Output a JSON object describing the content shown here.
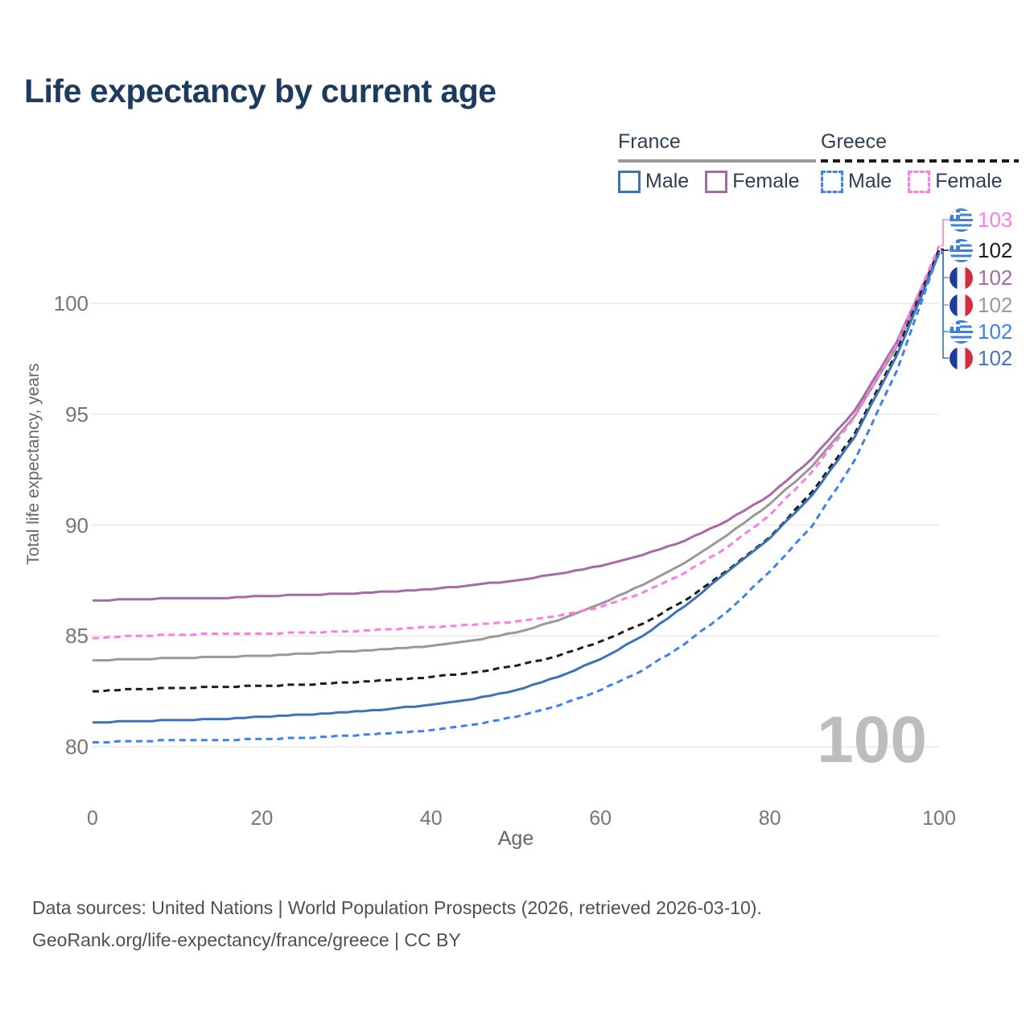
{
  "title": "Life expectancy by current age",
  "watermark": "100",
  "legend": {
    "groups": [
      {
        "country": "France",
        "style": "solid",
        "items": [
          {
            "label": "Male",
            "color": "#3e72b8"
          },
          {
            "label": "Female",
            "color": "#a66aa6"
          }
        ]
      },
      {
        "country": "Greece",
        "style": "dashed",
        "items": [
          {
            "label": "Male",
            "color": "#3c82f0"
          },
          {
            "label": "Female",
            "color": "#fc7ce3"
          }
        ]
      }
    ]
  },
  "axes": {
    "x": {
      "label": "Age",
      "ticks": [
        0,
        20,
        40,
        60,
        80,
        100
      ],
      "range": [
        0,
        100
      ]
    },
    "y": {
      "label": "Total life expectancy, years",
      "ticks": [
        80,
        85,
        90,
        95,
        100
      ],
      "range_shown": [
        80,
        100
      ]
    }
  },
  "chart_data": {
    "type": "line",
    "x": [
      0,
      5,
      10,
      15,
      20,
      25,
      30,
      35,
      40,
      45,
      50,
      55,
      60,
      65,
      70,
      75,
      80,
      85,
      90,
      95,
      100
    ],
    "xlabel": "Age",
    "ylabel": "Total life expectancy, years",
    "ylim": [
      78.5,
      103.5
    ],
    "grid": "horizontal",
    "legend_position": "top-right",
    "series": [
      {
        "name": "France",
        "country": "France",
        "sex": "Both sexes",
        "style": "solid",
        "color": "#999999",
        "row": 3,
        "flag": "france",
        "end_label": "102",
        "values": [
          83.9,
          83.95,
          84.0,
          84.05,
          84.1,
          84.2,
          84.3,
          84.4,
          84.55,
          84.8,
          85.15,
          85.7,
          86.45,
          87.3,
          88.3,
          89.55,
          90.95,
          92.65,
          94.9,
          98.05,
          102.35
        ]
      },
      {
        "name": "France Female",
        "country": "France",
        "sex": "Female",
        "style": "solid",
        "color": "#a66aa6",
        "row": 2,
        "flag": "france",
        "end_label": "102",
        "values": [
          86.6,
          86.65,
          86.7,
          86.7,
          86.8,
          86.85,
          86.9,
          87.0,
          87.1,
          87.3,
          87.5,
          87.8,
          88.15,
          88.65,
          89.3,
          90.2,
          91.35,
          93.0,
          95.15,
          98.25,
          102.4
        ]
      },
      {
        "name": "Greece",
        "country": "Greece",
        "sex": "Both sexes",
        "style": "dashed",
        "color": "#1c1c1c",
        "row": 1,
        "flag": "greece",
        "end_label": "102",
        "values": [
          82.5,
          82.6,
          82.65,
          82.7,
          82.75,
          82.8,
          82.9,
          83.0,
          83.15,
          83.35,
          83.65,
          84.1,
          84.75,
          85.55,
          86.6,
          87.95,
          89.45,
          91.5,
          94.1,
          97.8,
          102.45
        ]
      },
      {
        "name": "Greece Female",
        "country": "Greece",
        "sex": "Female",
        "style": "dashed",
        "color": "#fc7ce3",
        "row": 0,
        "flag": "greece",
        "end_label": "103",
        "values": [
          84.9,
          85.0,
          85.05,
          85.1,
          85.1,
          85.15,
          85.2,
          85.3,
          85.4,
          85.5,
          85.65,
          85.9,
          86.3,
          86.95,
          87.85,
          89.0,
          90.45,
          92.4,
          94.85,
          98.15,
          102.6
        ]
      },
      {
        "name": "France Male",
        "country": "France",
        "sex": "Male",
        "style": "solid",
        "color": "#3e72b8",
        "row": 5,
        "flag": "france",
        "end_label": "102",
        "values": [
          81.1,
          81.15,
          81.2,
          81.25,
          81.35,
          81.45,
          81.55,
          81.7,
          81.9,
          82.15,
          82.55,
          83.15,
          83.95,
          85.0,
          86.35,
          87.9,
          89.4,
          91.35,
          93.95,
          97.65,
          102.25
        ]
      },
      {
        "name": "Greece Male",
        "country": "Greece",
        "sex": "Male",
        "style": "dashed",
        "color": "#3c82f0",
        "row": 4,
        "flag": "greece",
        "end_label": "102",
        "values": [
          80.2,
          80.25,
          80.3,
          80.3,
          80.35,
          80.4,
          80.5,
          80.6,
          80.75,
          81.0,
          81.35,
          81.85,
          82.55,
          83.45,
          84.65,
          86.1,
          87.9,
          89.95,
          92.9,
          96.95,
          102.3
        ]
      }
    ]
  },
  "end_labels": [
    {
      "series": "Greece Female",
      "flag": "greece",
      "value": "103",
      "color": "#fc7ce3"
    },
    {
      "series": "Greece",
      "flag": "greece",
      "value": "102",
      "color": "#1c1c1c"
    },
    {
      "series": "France Female",
      "flag": "france",
      "value": "102",
      "color": "#a66aa6"
    },
    {
      "series": "France",
      "flag": "france",
      "value": "102",
      "color": "#9a9a9a"
    },
    {
      "series": "Greece Male",
      "flag": "greece",
      "value": "102",
      "color": "#3c82f0"
    },
    {
      "series": "France Male",
      "flag": "france",
      "value": "102",
      "color": "#4a74b9"
    }
  ],
  "footer": {
    "line1": "Data sources: United Nations | World Population Prospects (2026, retrieved 2026-03-10).",
    "line2": "GeoRank.org/life-expectancy/france/greece | CC BY"
  }
}
